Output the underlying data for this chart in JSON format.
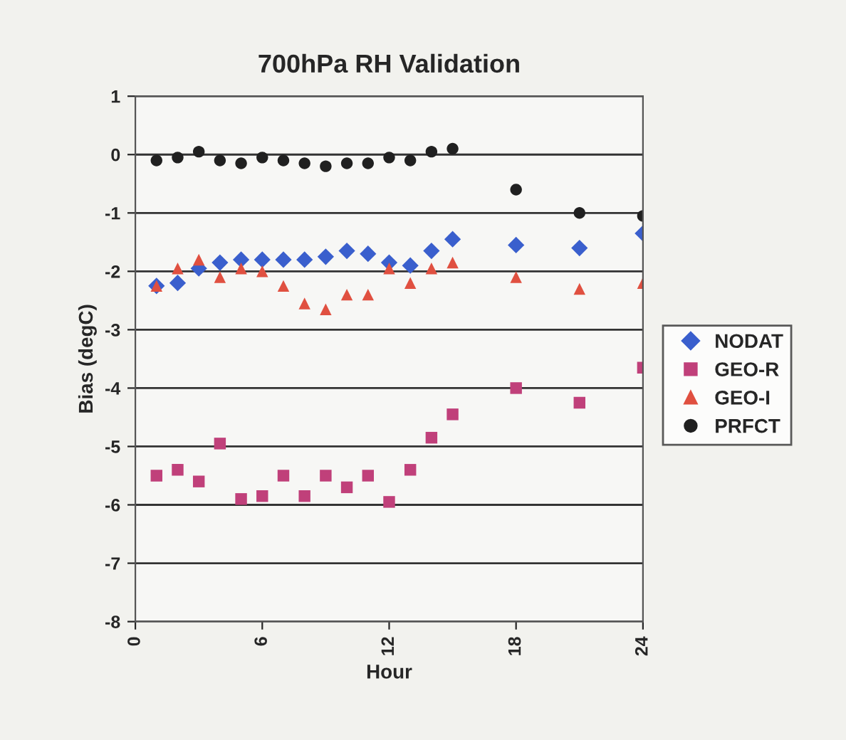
{
  "chart_data": {
    "type": "scatter",
    "title": "700hPa RH Validation",
    "xlabel": "Hour",
    "ylabel": "Bias (degC)",
    "x": [
      1,
      2,
      3,
      4,
      5,
      6,
      7,
      8,
      9,
      10,
      11,
      12,
      13,
      14,
      15,
      18,
      21,
      24
    ],
    "series": [
      {
        "name": "NODAT",
        "color": "#3a5fcd",
        "marker": "diamond",
        "values": [
          -2.25,
          -2.2,
          -1.95,
          -1.85,
          -1.8,
          -1.8,
          -1.8,
          -1.8,
          -1.75,
          -1.65,
          -1.7,
          -1.85,
          -1.9,
          -1.65,
          -1.45,
          -1.55,
          -1.6,
          -1.35
        ]
      },
      {
        "name": "GEO-R",
        "color": "#c0407a",
        "marker": "square",
        "values": [
          -5.5,
          -5.4,
          -5.6,
          -4.95,
          -5.9,
          -5.85,
          -5.5,
          -5.85,
          -5.5,
          -5.7,
          -5.5,
          -5.95,
          -5.4,
          -4.85,
          -4.45,
          -4.0,
          -4.25,
          -3.65
        ]
      },
      {
        "name": "GEO-I",
        "color": "#e05040",
        "marker": "triangle",
        "values": [
          -2.25,
          -1.95,
          -1.8,
          -2.1,
          -1.95,
          -2.0,
          -2.25,
          -2.55,
          -2.65,
          -2.4,
          -2.4,
          -1.95,
          -2.2,
          -1.95,
          -1.85,
          -2.1,
          -2.3,
          -2.2
        ]
      },
      {
        "name": "PRFCT",
        "color": "#202020",
        "marker": "circle",
        "values": [
          -0.1,
          -0.05,
          0.05,
          -0.1,
          -0.15,
          -0.05,
          -0.1,
          -0.15,
          -0.2,
          -0.15,
          -0.15,
          -0.05,
          -0.1,
          0.05,
          0.1,
          -0.6,
          -1.0,
          -1.05
        ]
      }
    ],
    "xlim": [
      0,
      24
    ],
    "xticks": [
      0,
      6,
      12,
      18,
      24
    ],
    "ylim": [
      -8,
      1
    ],
    "yticks": [
      -8,
      -7,
      -6,
      -5,
      -4,
      -3,
      -2,
      -1,
      0,
      1
    ],
    "grid": "y",
    "legend": "right"
  }
}
